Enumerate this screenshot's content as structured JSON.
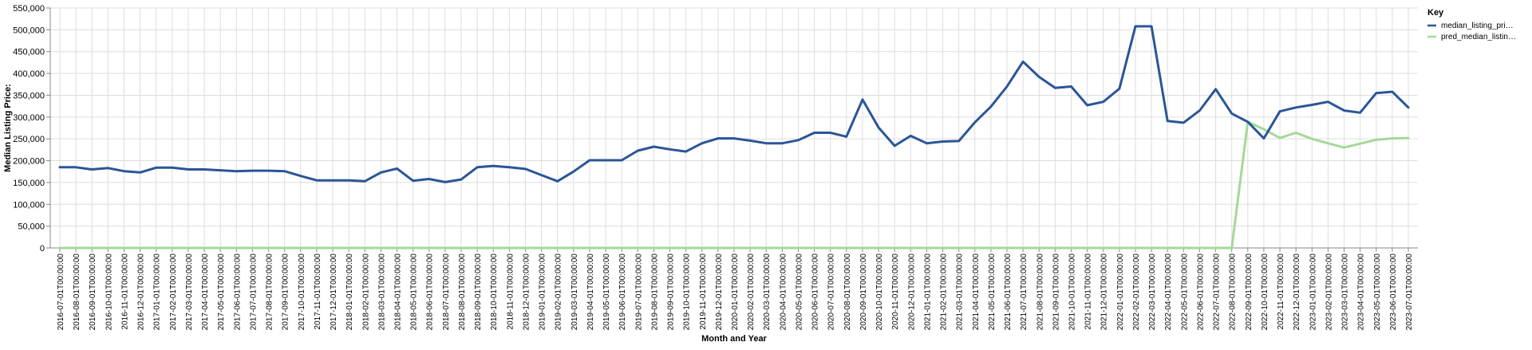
{
  "chart_data": {
    "type": "line",
    "title": "",
    "xlabel": "Month and Year",
    "ylabel": "Median Listing Price:",
    "ylim": [
      0,
      550000
    ],
    "y_ticks": [
      "0",
      "50,000",
      "100,000",
      "150,000",
      "200,000",
      "250,000",
      "300,000",
      "350,000",
      "400,000",
      "450,000",
      "500,000",
      "550,000"
    ],
    "grid": true,
    "legend": {
      "title": "Key",
      "position": "top-right"
    },
    "categories": [
      "2016-07-01T00:00:00",
      "2016-08-01T00:00:00",
      "2016-09-01T00:00:00",
      "2016-10-01T00:00:00",
      "2016-11-01T00:00:00",
      "2016-12-01T00:00:00",
      "2017-01-01T00:00:00",
      "2017-02-01T00:00:00",
      "2017-03-01T00:00:00",
      "2017-04-01T00:00:00",
      "2017-05-01T00:00:00",
      "2017-06-01T00:00:00",
      "2017-07-01T00:00:00",
      "2017-08-01T00:00:00",
      "2017-09-01T00:00:00",
      "2017-10-01T00:00:00",
      "2017-11-01T00:00:00",
      "2017-12-01T00:00:00",
      "2018-01-01T00:00:00",
      "2018-02-01T00:00:00",
      "2018-03-01T00:00:00",
      "2018-04-01T00:00:00",
      "2018-05-01T00:00:00",
      "2018-06-01T00:00:00",
      "2018-07-01T00:00:00",
      "2018-08-01T00:00:00",
      "2018-09-01T00:00:00",
      "2018-10-01T00:00:00",
      "2018-11-01T00:00:00",
      "2018-12-01T00:00:00",
      "2019-01-01T00:00:00",
      "2019-02-01T00:00:00",
      "2019-03-01T00:00:00",
      "2019-04-01T00:00:00",
      "2019-05-01T00:00:00",
      "2019-06-01T00:00:00",
      "2019-07-01T00:00:00",
      "2019-08-01T00:00:00",
      "2019-09-01T00:00:00",
      "2019-10-01T00:00:00",
      "2019-11-01T00:00:00",
      "2019-12-01T00:00:00",
      "2020-01-01T00:00:00",
      "2020-02-01T00:00:00",
      "2020-03-01T00:00:00",
      "2020-04-01T00:00:00",
      "2020-05-01T00:00:00",
      "2020-06-01T00:00:00",
      "2020-07-01T00:00:00",
      "2020-08-01T00:00:00",
      "2020-09-01T00:00:00",
      "2020-10-01T00:00:00",
      "2020-11-01T00:00:00",
      "2020-12-01T00:00:00",
      "2021-01-01T00:00:00",
      "2021-02-01T00:00:00",
      "2021-03-01T00:00:00",
      "2021-04-01T00:00:00",
      "2021-05-01T00:00:00",
      "2021-06-01T00:00:00",
      "2021-07-01T00:00:00",
      "2021-08-01T00:00:00",
      "2021-09-01T00:00:00",
      "2021-10-01T00:00:00",
      "2021-11-01T00:00:00",
      "2021-12-01T00:00:00",
      "2022-01-01T00:00:00",
      "2022-02-01T00:00:00",
      "2022-03-01T00:00:00",
      "2022-04-01T00:00:00",
      "2022-05-01T00:00:00",
      "2022-06-01T00:00:00",
      "2022-07-01T00:00:00",
      "2022-08-01T00:00:00",
      "2022-09-01T00:00:00",
      "2022-10-01T00:00:00",
      "2022-11-01T00:00:00",
      "2022-12-01T00:00:00",
      "2023-01-01T00:00:00",
      "2023-02-01T00:00:00",
      "2023-03-01T00:00:00",
      "2023-04-01T00:00:00",
      "2023-05-01T00:00:00",
      "2023-06-01T00:00:00",
      "2023-07-01T00:00:00"
    ],
    "series": [
      {
        "name": "median_listing_pri…",
        "color": "#2b5597",
        "values": [
          185000,
          185000,
          180000,
          183000,
          176000,
          173000,
          184000,
          184000,
          180000,
          180000,
          178000,
          176000,
          177000,
          177000,
          176000,
          165000,
          155000,
          155000,
          155000,
          153000,
          173000,
          182000,
          154000,
          158000,
          151000,
          157000,
          185000,
          188000,
          185000,
          181000,
          167000,
          153000,
          175000,
          201000,
          201000,
          201000,
          223000,
          232000,
          226000,
          221000,
          240000,
          251000,
          251000,
          246000,
          240000,
          240000,
          247000,
          264000,
          264000,
          255000,
          340000,
          276000,
          234000,
          257000,
          240000,
          244000,
          245000,
          288000,
          324000,
          370000,
          427000,
          392000,
          367000,
          370000,
          327000,
          335000,
          365000,
          508000,
          508000,
          291000,
          287000,
          315000,
          364000,
          308000,
          289000,
          251000,
          313000,
          322000,
          328000,
          335000,
          315000,
          310000,
          355000,
          358000,
          322000
        ]
      },
      {
        "name": "pred_median_listin…",
        "color": "#a3d998",
        "values": [
          0,
          0,
          0,
          0,
          0,
          0,
          0,
          0,
          0,
          0,
          0,
          0,
          0,
          0,
          0,
          0,
          0,
          0,
          0,
          0,
          0,
          0,
          0,
          0,
          0,
          0,
          0,
          0,
          0,
          0,
          0,
          0,
          0,
          0,
          0,
          0,
          0,
          0,
          0,
          0,
          0,
          0,
          0,
          0,
          0,
          0,
          0,
          0,
          0,
          0,
          0,
          0,
          0,
          0,
          0,
          0,
          0,
          0,
          0,
          0,
          0,
          0,
          0,
          0,
          0,
          0,
          0,
          0,
          0,
          0,
          0,
          0,
          0,
          0,
          289000,
          272000,
          252000,
          264000,
          250000,
          240000,
          230000,
          239000,
          248000,
          251000,
          252000
        ]
      }
    ]
  }
}
